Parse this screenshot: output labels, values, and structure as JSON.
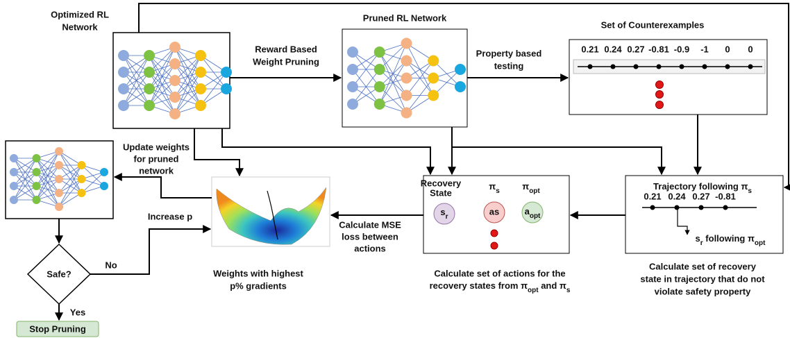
{
  "optimized": {
    "title": [
      "Optimized RL",
      "Network"
    ]
  },
  "pruning_step": [
    "Reward Based",
    "Weight Pruning"
  ],
  "pruned": {
    "title": "Pruned RL Network"
  },
  "testing_step": [
    "Property based",
    "testing"
  ],
  "counterexamples": {
    "title": "Set of Counterexamples",
    "values": [
      {
        "text": "0.21",
        "color": "#2e9e5b"
      },
      {
        "text": "0.24",
        "color": "#2e9e5b"
      },
      {
        "text": "0.27",
        "color": "#2e9e5b"
      },
      {
        "text": "-0.81",
        "color": "#e02020"
      },
      {
        "text": "-0.9",
        "color": "#e02020"
      },
      {
        "text": "-1",
        "color": "#e02020"
      },
      {
        "text": "0",
        "color": "#111111"
      },
      {
        "text": "0",
        "color": "#111111"
      }
    ]
  },
  "trajectory": {
    "title": [
      {
        "t": "Trajectory following π"
      },
      {
        "t": "s",
        "sub": true
      }
    ],
    "values": [
      {
        "text": "0.21",
        "color": "#2e9e5b"
      },
      {
        "text": "0.24",
        "color": "#2e9e5b"
      },
      {
        "text": "0.27",
        "color": "#2e9e5b"
      },
      {
        "text": "-0.81",
        "color": "#e02020"
      }
    ],
    "branch": [
      {
        "t": "s"
      },
      {
        "t": "r",
        "sub": true
      },
      {
        "t": " following π"
      },
      {
        "t": "opt",
        "sub": true
      }
    ],
    "caption": [
      "Calculate set of recovery",
      "state in trajectory that do not",
      "violate safety property"
    ]
  },
  "recovery": {
    "state_label": [
      "Recovery",
      "State"
    ],
    "policy_s": [
      {
        "t": "π"
      },
      {
        "t": "s",
        "sub": true
      }
    ],
    "policy_opt": [
      {
        "t": "π"
      },
      {
        "t": "opt",
        "sub": true
      }
    ],
    "state_node": [
      {
        "t": "s"
      },
      {
        "t": "r",
        "sub": true
      }
    ],
    "action_s": "as",
    "action_opt": [
      {
        "t": "a"
      },
      {
        "t": "opt",
        "sub": true
      }
    ],
    "caption": [
      "Calculate set of actions for the",
      [
        {
          "t": "recovery states from π"
        },
        {
          "t": "opt",
          "sub": true
        },
        {
          "t": " and π"
        },
        {
          "t": "s",
          "sub": true
        }
      ]
    ]
  },
  "mse_step": [
    "Calculate MSE",
    "loss between",
    "actions"
  ],
  "surface": {
    "caption": [
      "Weights with highest",
      "p% gradients"
    ]
  },
  "update_step": [
    "Update weights",
    "for pruned",
    "network"
  ],
  "increase_step": "Increase p",
  "decision": {
    "question": "Safe?",
    "no": "No",
    "yes": "Yes",
    "stop": "Stop Pruning"
  }
}
